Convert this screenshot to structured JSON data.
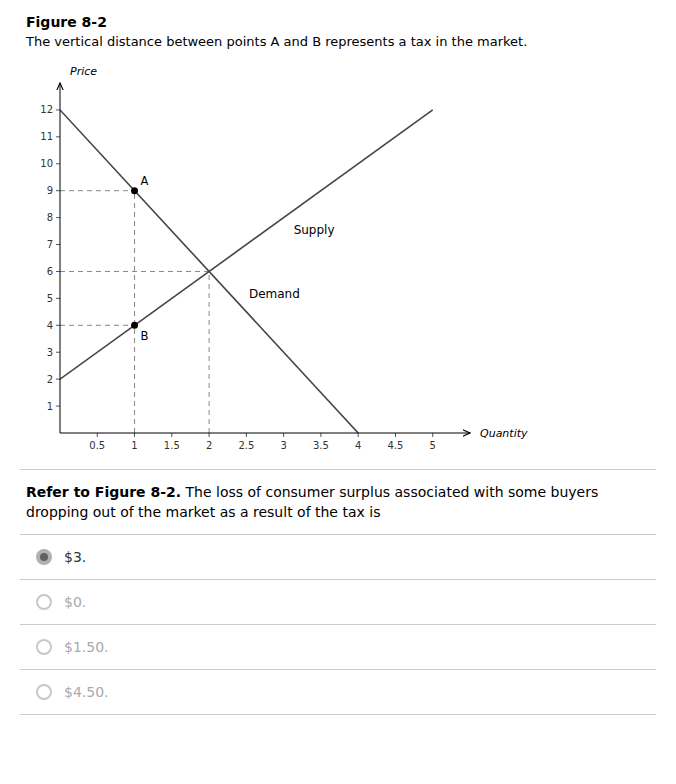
{
  "chart_data": {
    "type": "line",
    "title": "Figure 8-2",
    "subtitle": "The vertical distance between points A and B represents a tax in the market.",
    "x_label": "Quantity",
    "y_label": "Price",
    "series": [
      {
        "name": "Demand",
        "color": "#444444",
        "x": [
          0,
          4
        ],
        "values": [
          12,
          0
        ]
      },
      {
        "name": "Supply",
        "color": "#444444",
        "x": [
          0,
          5
        ],
        "values": [
          2,
          12
        ]
      }
    ],
    "points": [
      {
        "label": "A",
        "x": 1,
        "y": 9
      },
      {
        "label": "B",
        "x": 1,
        "y": 4
      }
    ],
    "point_color": "#000000",
    "reference_lines": [
      {
        "x": [
          0,
          1
        ],
        "y": [
          9,
          9
        ]
      },
      {
        "x": [
          1,
          1
        ],
        "y": [
          0,
          9
        ]
      },
      {
        "x": [
          0,
          1
        ],
        "y": [
          4,
          4
        ]
      },
      {
        "x": [
          0,
          2
        ],
        "y": [
          6,
          6
        ]
      },
      {
        "x": [
          2,
          2
        ],
        "y": [
          0,
          6
        ]
      }
    ],
    "reference_color": "#888888",
    "reference_line_style": "dashed",
    "xlim": [
      0,
      5.5
    ],
    "ylim": [
      0,
      13
    ],
    "xticks": [
      0.5,
      1,
      1.5,
      2,
      2.5,
      3,
      3.5,
      4,
      4.5,
      5
    ],
    "yticks": [
      1,
      2,
      3,
      4,
      5,
      6,
      7,
      8,
      9,
      10,
      11,
      12
    ],
    "grid": false
  },
  "question": {
    "bold": "Refer to Figure 8-2.",
    "text": " The loss of consumer surplus associated with some buyers dropping out of the market as a result of the tax is",
    "options": [
      {
        "label": "$3.",
        "selected": true
      },
      {
        "label": "$0.",
        "selected": false
      },
      {
        "label": "$1.50.",
        "selected": false
      },
      {
        "label": "$4.50.",
        "selected": false
      }
    ]
  }
}
